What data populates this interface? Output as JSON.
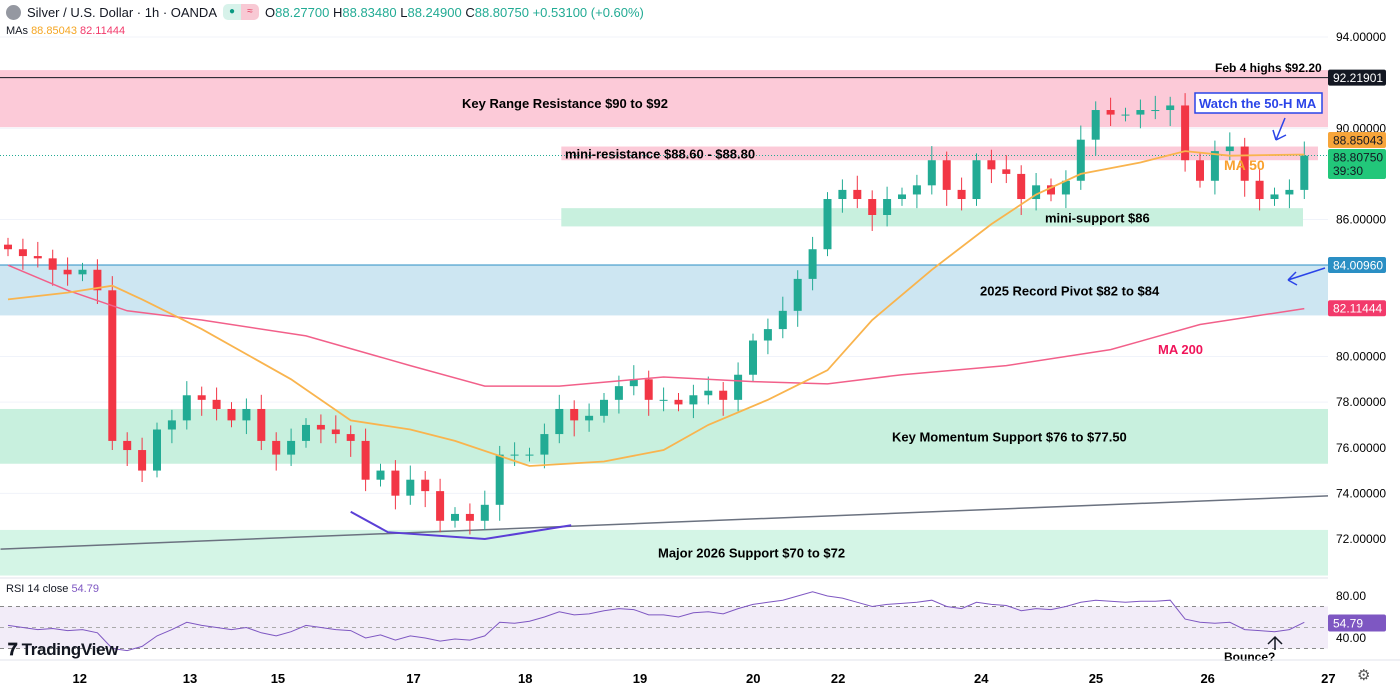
{
  "header": {
    "symbol": "Silver / U.S. Dollar · 1h · OANDA",
    "open_label": "O",
    "open": "88.27700",
    "high_label": "H",
    "high": "88.83480",
    "low_label": "L",
    "low": "88.24900",
    "close_label": "C",
    "close": "88.80750",
    "change": "+0.53100 (+0.60%)",
    "badge_icons": [
      "market-open-dot-icon",
      "approx-icon"
    ]
  },
  "mas": {
    "label": "MAs",
    "ma50": "88.85043",
    "ma200": "82.11444"
  },
  "rsi_header": {
    "label": "RSI 14 close",
    "value": "54.79"
  },
  "logo": "TradingView",
  "colors": {
    "up": "#22ab94",
    "down": "#f23645",
    "ma50": "#f9b44e",
    "ma200": "#f2608a",
    "rsi": "#7e57c2",
    "trendline": "#6b7280",
    "curve": "#5b3fd6",
    "annotation_blue": "#2a44e8"
  },
  "price_axis": {
    "ticks": [
      "94.00000",
      "90.00000",
      "86.00000",
      "80.00000",
      "78.00000",
      "76.00000",
      "74.00000",
      "72.00000"
    ],
    "tick_values": [
      94,
      90,
      86,
      80,
      78,
      76,
      74,
      72
    ]
  },
  "price_tags": [
    {
      "value": 92.21901,
      "text": "92.21901",
      "color": "#131722"
    },
    {
      "value": 88.85043,
      "text": "88.85043",
      "color": "#f7a53a"
    },
    {
      "value": 88.8075,
      "text": "88.80750",
      "sub": "39:30",
      "color": "#22c77a"
    },
    {
      "value": 84.0096,
      "text": "84.00960",
      "color": "#2a8fc4"
    },
    {
      "value": 82.11444,
      "text": "82.11444",
      "color": "#f23a6b"
    }
  ],
  "rsi_axis": {
    "ticks": [
      "80.00",
      "40.00"
    ],
    "tick_values": [
      80,
      40
    ],
    "current_tag": "54.79",
    "upper_band": 70,
    "lower_band": 30,
    "mid": 50
  },
  "time_axis": [
    {
      "label": "12",
      "index": 4.8
    },
    {
      "label": "13",
      "index": 12.2
    },
    {
      "label": "15",
      "index": 18.1
    },
    {
      "label": "17",
      "index": 27.2
    },
    {
      "label": "18",
      "index": 34.7
    },
    {
      "label": "19",
      "index": 42.4
    },
    {
      "label": "20",
      "index": 50
    },
    {
      "label": "22",
      "index": 55.7
    },
    {
      "label": "24",
      "index": 65.3
    },
    {
      "label": "25",
      "index": 73
    },
    {
      "label": "26",
      "index": 80.5
    },
    {
      "label": "27",
      "index": 88.6
    }
  ],
  "chart_data": {
    "type": "candlestick",
    "ylim": [
      69.5,
      94.6
    ],
    "closes": [
      84.7,
      84.4,
      84.3,
      83.8,
      83.6,
      83.8,
      82.9,
      76.3,
      75.9,
      75.0,
      76.8,
      77.2,
      78.3,
      78.1,
      77.7,
      77.2,
      77.7,
      76.3,
      75.7,
      76.3,
      77.0,
      76.8,
      76.6,
      76.3,
      74.6,
      75.0,
      73.9,
      74.6,
      74.1,
      72.8,
      73.1,
      72.8,
      73.5,
      75.7,
      75.7,
      75.7,
      76.6,
      77.7,
      77.2,
      77.4,
      78.1,
      78.7,
      79.0,
      78.1,
      78.1,
      77.9,
      78.3,
      78.5,
      78.1,
      79.2,
      80.7,
      81.2,
      82.0,
      83.4,
      84.7,
      86.9,
      87.3,
      86.9,
      86.2,
      86.9,
      87.1,
      87.5,
      88.6,
      87.3,
      86.9,
      88.6,
      88.2,
      88.0,
      86.9,
      87.5,
      87.1,
      87.7,
      89.5,
      90.8,
      90.6,
      90.6,
      90.8,
      90.8,
      91.0,
      88.6,
      87.7,
      89.0,
      89.2,
      87.7,
      86.9,
      87.1,
      87.3,
      88.8
    ],
    "ma50": [
      [
        0,
        82.5
      ],
      [
        4,
        82.8
      ],
      [
        7,
        83.1
      ],
      [
        9,
        82.5
      ],
      [
        13,
        81.2
      ],
      [
        19,
        79.0
      ],
      [
        23,
        77.2
      ],
      [
        27,
        76.8
      ],
      [
        30,
        76.3
      ],
      [
        35,
        75.2
      ],
      [
        40,
        75.4
      ],
      [
        44,
        75.9
      ],
      [
        47,
        77.0
      ],
      [
        51,
        78.1
      ],
      [
        55,
        79.4
      ],
      [
        58,
        81.6
      ],
      [
        62,
        83.8
      ],
      [
        66,
        85.8
      ],
      [
        69,
        87.1
      ],
      [
        72,
        88.0
      ],
      [
        76,
        88.5
      ],
      [
        79,
        89.0
      ],
      [
        82,
        88.8
      ],
      [
        87,
        88.85
      ]
    ],
    "ma200": [
      [
        0,
        84.0
      ],
      [
        4,
        82.9
      ],
      [
        8,
        82.0
      ],
      [
        13,
        81.6
      ],
      [
        20,
        80.9
      ],
      [
        27,
        79.6
      ],
      [
        32,
        78.7
      ],
      [
        37,
        78.7
      ],
      [
        44,
        79.1
      ],
      [
        50,
        78.9
      ],
      [
        55,
        78.8
      ],
      [
        60,
        79.2
      ],
      [
        67,
        79.6
      ],
      [
        74,
        80.3
      ],
      [
        80,
        81.4
      ],
      [
        87,
        82.1
      ]
    ],
    "trendline": [
      [
        -0.5,
        71.56
      ],
      [
        89,
        73.9
      ]
    ],
    "curve": [
      [
        23,
        73.2
      ],
      [
        25.5,
        72.3
      ],
      [
        32,
        72.0
      ],
      [
        37.8,
        72.6
      ]
    ],
    "rsi": [
      52,
      50,
      48,
      49,
      47,
      48,
      45,
      30,
      28,
      32,
      42,
      48,
      55,
      52,
      50,
      48,
      50,
      45,
      42,
      46,
      52,
      50,
      48,
      47,
      40,
      43,
      38,
      42,
      40,
      37,
      39,
      38,
      42,
      55,
      54,
      56,
      60,
      65,
      62,
      63,
      66,
      68,
      67,
      62,
      62,
      60,
      64,
      65,
      63,
      68,
      72,
      74,
      76,
      80,
      84,
      80,
      78,
      74,
      70,
      72,
      73,
      74,
      76,
      70,
      68,
      74,
      72,
      71,
      66,
      68,
      67,
      70,
      74,
      76,
      75,
      74,
      75,
      75,
      76,
      58,
      55,
      54,
      55,
      48,
      47,
      46,
      48,
      55
    ],
    "zones": [
      {
        "label": "Key Range Resistance $90 to $92",
        "from": 90.05,
        "to": 92.55,
        "color": "#fccad8",
        "start": 0
      },
      {
        "label": "mini-resistance $88.60 - $88.80",
        "from": 88.6,
        "to": 89.2,
        "color": "#fccad8",
        "start": 37
      },
      {
        "label": "mini-support $86",
        "from": 85.7,
        "to": 86.5,
        "color": "#c8f0de",
        "start": 37
      },
      {
        "label": "2025 Record Pivot $82 to $84",
        "from": 81.8,
        "to": 84.0,
        "color": "#cde6f2",
        "start": 0
      },
      {
        "label": "Key Momentum Support $76 to $77.50",
        "from": 75.3,
        "to": 77.7,
        "color": "#c8f0de",
        "start": 0
      },
      {
        "label": "Major 2026 Support $70 to $72",
        "from": 70.4,
        "to": 72.4,
        "color": "#d4f5e6",
        "start": 0
      }
    ],
    "annotations": {
      "feb4": "Feb 4 highs $92.20",
      "watch": "Watch the 50-H MA",
      "ma50": "MA 50",
      "ma200": "MA 200",
      "bounce": "Bounce?"
    }
  }
}
